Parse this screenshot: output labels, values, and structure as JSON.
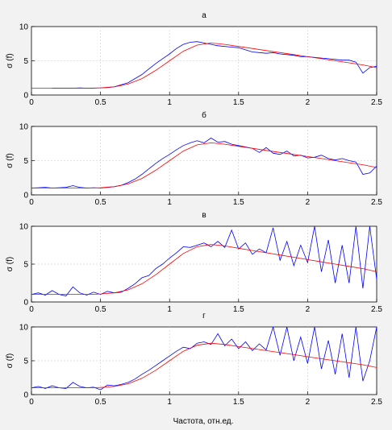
{
  "figure": {
    "xlabel": "Частота, отн.ед.",
    "colors": {
      "measured": "#0000ff",
      "fit": "#ff0000"
    }
  },
  "chart_data": [
    {
      "type": "line",
      "title": "а",
      "ylabel": "σ (f)",
      "xlim": [
        0,
        2.5
      ],
      "ylim": [
        0,
        10
      ],
      "xticks": [
        "0",
        "0.5",
        "1",
        "1.5",
        "2",
        "2.5"
      ],
      "yticks": [
        "0",
        "5",
        "10"
      ],
      "grid": true,
      "series": [
        {
          "x": [
            0.15,
            0.2,
            0.25,
            0.3,
            0.35,
            0.4,
            0.45,
            0.5,
            0.55,
            0.6,
            0.65,
            0.7,
            0.75,
            0.8,
            0.85,
            0.9,
            0.95,
            1.0,
            1.05,
            1.1,
            1.15,
            1.2,
            1.25,
            1.3,
            1.35,
            1.4,
            1.45,
            1.5,
            1.55,
            1.6,
            1.65,
            1.7,
            1.75,
            1.8,
            1.85,
            1.9,
            1.95,
            2.0,
            2.05,
            2.1,
            2.15,
            2.2,
            2.25,
            2.3,
            2.35,
            2.4,
            2.45,
            2.5
          ],
          "values": [
            1.0,
            1.0,
            1.0,
            1.0,
            1.05,
            1.0,
            1.0,
            1.05,
            1.1,
            1.2,
            1.5,
            1.8,
            2.4,
            3.0,
            3.8,
            4.6,
            5.3,
            6.0,
            6.8,
            7.4,
            7.7,
            7.8,
            7.6,
            7.4,
            7.2,
            7.1,
            7.0,
            6.9,
            6.6,
            6.3,
            6.2,
            6.1,
            6.2,
            6.0,
            5.9,
            5.8,
            5.6,
            5.6,
            5.5,
            5.4,
            5.3,
            5.2,
            5.1,
            5.1,
            4.8,
            3.2,
            4.0,
            4.2
          ]
        },
        {
          "x": [
            0,
            0.2,
            0.4,
            0.5,
            0.6,
            0.7,
            0.8,
            0.9,
            1.0,
            1.1,
            1.2,
            1.3,
            1.4,
            1.5,
            1.6,
            1.7,
            1.8,
            1.9,
            2.0,
            2.1,
            2.2,
            2.3,
            2.4,
            2.5
          ],
          "values": [
            1.0,
            1.0,
            1.0,
            1.05,
            1.2,
            1.6,
            2.4,
            3.6,
            5.0,
            6.4,
            7.3,
            7.6,
            7.4,
            7.1,
            6.8,
            6.5,
            6.2,
            5.9,
            5.6,
            5.3,
            5.0,
            4.7,
            4.4,
            4.0
          ]
        }
      ]
    },
    {
      "type": "line",
      "title": "б",
      "ylabel": "σ (f)",
      "xlim": [
        0,
        2.5
      ],
      "ylim": [
        0,
        10
      ],
      "xticks": [
        "0",
        "0.5",
        "1",
        "1.5",
        "2",
        "2.5"
      ],
      "yticks": [
        "0",
        "5",
        "10"
      ],
      "grid": true,
      "series": [
        {
          "x": [
            0.0,
            0.05,
            0.1,
            0.15,
            0.2,
            0.25,
            0.3,
            0.35,
            0.4,
            0.45,
            0.5,
            0.55,
            0.6,
            0.65,
            0.7,
            0.75,
            0.8,
            0.85,
            0.9,
            0.95,
            1.0,
            1.05,
            1.1,
            1.15,
            1.2,
            1.25,
            1.3,
            1.35,
            1.4,
            1.45,
            1.5,
            1.55,
            1.6,
            1.65,
            1.7,
            1.75,
            1.8,
            1.85,
            1.9,
            1.95,
            2.0,
            2.05,
            2.1,
            2.15,
            2.2,
            2.25,
            2.3,
            2.35,
            2.4,
            2.45,
            2.5
          ],
          "values": [
            1.0,
            1.05,
            1.1,
            1.0,
            1.05,
            1.1,
            1.35,
            1.1,
            1.0,
            1.05,
            1.0,
            1.1,
            1.2,
            1.4,
            1.8,
            2.3,
            3.0,
            3.8,
            4.6,
            5.3,
            5.9,
            6.6,
            7.2,
            7.6,
            7.9,
            7.6,
            8.3,
            7.7,
            7.8,
            7.4,
            7.2,
            7.0,
            6.8,
            6.2,
            6.9,
            6.1,
            5.9,
            6.4,
            5.7,
            5.8,
            5.4,
            5.5,
            5.8,
            5.3,
            5.1,
            5.3,
            5.0,
            4.8,
            3.0,
            3.2,
            4.2
          ]
        },
        {
          "x": [
            0,
            0.2,
            0.4,
            0.5,
            0.6,
            0.7,
            0.8,
            0.9,
            1.0,
            1.1,
            1.2,
            1.3,
            1.4,
            1.5,
            1.6,
            1.7,
            1.8,
            1.9,
            2.0,
            2.1,
            2.2,
            2.3,
            2.4,
            2.5
          ],
          "values": [
            1.0,
            1.0,
            1.0,
            1.05,
            1.2,
            1.6,
            2.4,
            3.6,
            5.0,
            6.4,
            7.3,
            7.6,
            7.4,
            7.1,
            6.8,
            6.5,
            6.2,
            5.9,
            5.6,
            5.3,
            5.0,
            4.7,
            4.4,
            4.0
          ]
        }
      ]
    },
    {
      "type": "line",
      "title": "в",
      "ylabel": "σ (f)",
      "xlim": [
        0,
        2.5
      ],
      "ylim": [
        0,
        10
      ],
      "xticks": [
        "0",
        "0.5",
        "1",
        "1.5",
        "2",
        "2.5"
      ],
      "yticks": [
        "0",
        "5",
        "10"
      ],
      "grid": true,
      "series": [
        {
          "x": [
            0.0,
            0.05,
            0.1,
            0.15,
            0.2,
            0.25,
            0.3,
            0.35,
            0.4,
            0.45,
            0.5,
            0.55,
            0.6,
            0.65,
            0.7,
            0.75,
            0.8,
            0.85,
            0.9,
            0.95,
            1.0,
            1.05,
            1.1,
            1.15,
            1.2,
            1.25,
            1.3,
            1.35,
            1.4,
            1.45,
            1.5,
            1.55,
            1.6,
            1.65,
            1.7,
            1.75,
            1.8,
            1.85,
            1.9,
            1.95,
            2.0,
            2.05,
            2.1,
            2.15,
            2.2,
            2.25,
            2.3,
            2.35,
            2.4,
            2.45,
            2.5
          ],
          "values": [
            1.0,
            1.2,
            0.9,
            1.5,
            1.0,
            0.8,
            2.0,
            1.2,
            0.9,
            1.3,
            1.0,
            1.4,
            1.2,
            1.3,
            1.8,
            2.4,
            3.2,
            3.5,
            4.4,
            5.0,
            5.8,
            6.5,
            7.3,
            7.2,
            7.5,
            7.8,
            7.3,
            8.0,
            7.2,
            9.5,
            7.0,
            7.8,
            6.3,
            7.0,
            6.5,
            9.8,
            5.5,
            8.0,
            4.8,
            7.5,
            5.2,
            10,
            4.0,
            8.2,
            2.5,
            7.5,
            2.5,
            10,
            1.8,
            10,
            3.0
          ]
        },
        {
          "x": [
            0,
            0.2,
            0.4,
            0.5,
            0.6,
            0.7,
            0.8,
            0.9,
            1.0,
            1.1,
            1.2,
            1.3,
            1.4,
            1.5,
            1.6,
            1.7,
            1.8,
            1.9,
            2.0,
            2.1,
            2.2,
            2.3,
            2.4,
            2.5
          ],
          "values": [
            1.0,
            1.0,
            1.0,
            1.05,
            1.2,
            1.6,
            2.4,
            3.6,
            5.0,
            6.4,
            7.3,
            7.6,
            7.4,
            7.1,
            6.8,
            6.5,
            6.2,
            5.9,
            5.6,
            5.3,
            5.0,
            4.7,
            4.4,
            4.0
          ]
        }
      ]
    },
    {
      "type": "line",
      "title": "г",
      "ylabel": "σ (f)",
      "xlim": [
        0,
        2.5
      ],
      "ylim": [
        0,
        10
      ],
      "xticks": [
        "0",
        "0.5",
        "1",
        "1.5",
        "2",
        "2.5"
      ],
      "yticks": [
        "0",
        "5",
        "10"
      ],
      "grid": true,
      "series": [
        {
          "x": [
            0.0,
            0.05,
            0.1,
            0.15,
            0.2,
            0.25,
            0.3,
            0.35,
            0.4,
            0.45,
            0.5,
            0.55,
            0.6,
            0.65,
            0.7,
            0.75,
            0.8,
            0.85,
            0.9,
            0.95,
            1.0,
            1.05,
            1.1,
            1.15,
            1.2,
            1.25,
            1.3,
            1.35,
            1.4,
            1.45,
            1.5,
            1.55,
            1.6,
            1.65,
            1.7,
            1.75,
            1.8,
            1.85,
            1.9,
            1.95,
            2.0,
            2.05,
            2.1,
            2.15,
            2.2,
            2.25,
            2.3,
            2.35,
            2.4,
            2.45,
            2.5
          ],
          "values": [
            1.0,
            1.2,
            0.9,
            1.3,
            1.0,
            0.9,
            1.8,
            1.2,
            1.0,
            1.1,
            0.7,
            1.4,
            1.3,
            1.5,
            1.8,
            2.3,
            3.0,
            3.6,
            4.3,
            5.0,
            5.7,
            6.4,
            7.0,
            6.8,
            7.6,
            7.8,
            7.4,
            9.0,
            7.2,
            8.2,
            6.8,
            7.8,
            6.5,
            7.5,
            6.6,
            10,
            5.8,
            10,
            5.0,
            8.5,
            4.6,
            10,
            3.8,
            8.0,
            3.0,
            9.0,
            2.5,
            10,
            2.0,
            5.0,
            10
          ]
        },
        {
          "x": [
            0,
            0.2,
            0.4,
            0.5,
            0.6,
            0.7,
            0.8,
            0.9,
            1.0,
            1.1,
            1.2,
            1.3,
            1.4,
            1.5,
            1.6,
            1.7,
            1.8,
            1.9,
            2.0,
            2.1,
            2.2,
            2.3,
            2.4,
            2.5
          ],
          "values": [
            1.0,
            1.0,
            1.0,
            1.05,
            1.2,
            1.6,
            2.4,
            3.6,
            5.0,
            6.4,
            7.3,
            7.6,
            7.4,
            7.1,
            6.8,
            6.5,
            6.2,
            5.9,
            5.6,
            5.3,
            5.0,
            4.7,
            4.4,
            4.0
          ]
        }
      ]
    }
  ]
}
